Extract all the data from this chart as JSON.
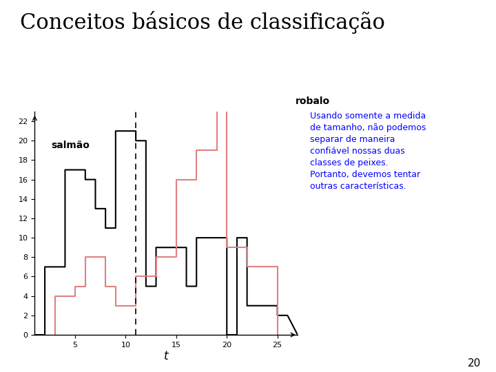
{
  "title": "Conceitos básicos de classificação",
  "xlabel": "t",
  "background_color": "#ffffff",
  "xlim": [
    1,
    27
  ],
  "ylim": [
    0,
    23
  ],
  "yticks": [
    0,
    2,
    4,
    6,
    8,
    10,
    12,
    14,
    16,
    18,
    20,
    22
  ],
  "xticks": [
    5,
    10,
    15,
    20,
    25
  ],
  "dashed_line_x": 11,
  "salmon_label": "salmão",
  "robalo_label": "robalo",
  "annotation_text": "Usando somente a medida\nde tamanho, não podemos\nseparar de maneira\nconfiável nossas duas\nclasses de peixes.\nPortanto, devemos tentar\noutras características.",
  "salmon_color": "#000000",
  "robalo_color": "#e08080",
  "page_number": "20",
  "salmon_x": [
    1,
    2,
    2,
    4,
    4,
    5,
    5,
    6,
    6,
    7,
    7,
    8,
    8,
    9,
    9,
    11,
    11,
    12,
    12,
    13,
    13,
    16,
    16,
    17,
    17,
    20,
    20,
    21,
    21,
    22,
    22,
    23,
    23,
    25,
    25,
    26,
    26,
    27
  ],
  "salmon_y": [
    0,
    0,
    7,
    7,
    17,
    17,
    17,
    17,
    16,
    16,
    13,
    13,
    11,
    11,
    21,
    21,
    20,
    20,
    5,
    5,
    9,
    9,
    5,
    5,
    10,
    10,
    0,
    0,
    10,
    10,
    3,
    3,
    3,
    3,
    2,
    2,
    2,
    0
  ],
  "robalo_x": [
    3,
    3,
    4,
    4,
    5,
    5,
    6,
    6,
    7,
    7,
    8,
    8,
    9,
    9,
    11,
    11,
    12,
    12,
    13,
    13,
    15,
    15,
    16,
    16,
    17,
    17,
    19,
    19,
    20,
    20,
    21,
    21,
    22,
    22,
    23,
    23,
    25,
    25
  ],
  "robalo_y": [
    0,
    4,
    4,
    4,
    4,
    5,
    5,
    8,
    8,
    8,
    8,
    5,
    5,
    3,
    3,
    6,
    6,
    6,
    6,
    8,
    8,
    16,
    16,
    16,
    16,
    19,
    19,
    24,
    24,
    9,
    9,
    9,
    9,
    7,
    7,
    7,
    7,
    0
  ]
}
